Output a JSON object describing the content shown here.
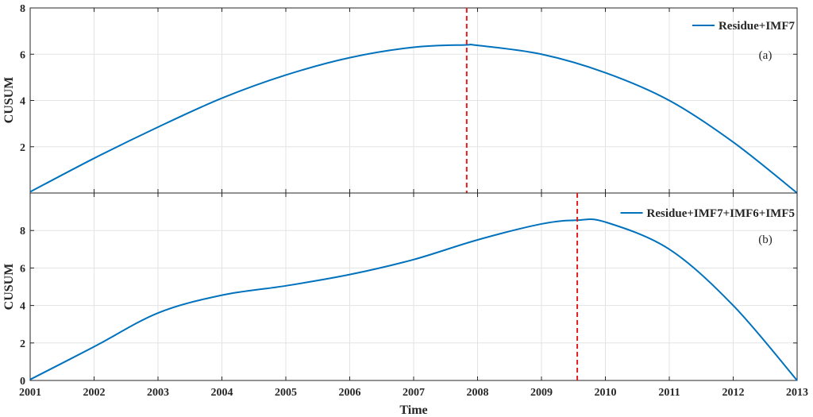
{
  "chart_data": [
    {
      "type": "line",
      "panel_label": "(a)",
      "ylabel": "CUSUM",
      "xlabel": "",
      "xlim": [
        2001,
        2013
      ],
      "ylim": [
        0,
        8
      ],
      "yticks": [
        2,
        4,
        6,
        8
      ],
      "xticks": [],
      "grid": true,
      "legend_placement": "top-right",
      "series": [
        {
          "name": "Residue+IMF7",
          "color": "#0072BD",
          "x": [
            2001,
            2002,
            2003,
            2004,
            2005,
            2006,
            2007,
            2007.8,
            2008,
            2009,
            2010,
            2011,
            2012,
            2013
          ],
          "y": [
            0.05,
            1.5,
            2.85,
            4.1,
            5.1,
            5.85,
            6.3,
            6.4,
            6.38,
            6.0,
            5.2,
            4.0,
            2.2,
            0.0
          ]
        }
      ],
      "change_point": {
        "x": 2007.83,
        "color": "#e41a1c"
      }
    },
    {
      "type": "line",
      "panel_label": "(b)",
      "ylabel": "CUSUM",
      "xlabel": "Time",
      "xlim": [
        2001,
        2013
      ],
      "ylim": [
        0,
        10
      ],
      "yticks": [
        0,
        2,
        4,
        6,
        8
      ],
      "xticks": [
        2001,
        2002,
        2003,
        2004,
        2005,
        2006,
        2007,
        2008,
        2009,
        2010,
        2011,
        2012,
        2013
      ],
      "grid": true,
      "legend_placement": "top-right",
      "series": [
        {
          "name": "Residue+IMF7+IMF6+IMF5",
          "color": "#0072BD",
          "x": [
            2001,
            2002,
            2003,
            2004,
            2005,
            2006,
            2007,
            2008,
            2009,
            2009.56,
            2010,
            2011,
            2012,
            2013
          ],
          "y": [
            0.05,
            1.8,
            3.6,
            4.55,
            5.05,
            5.65,
            6.45,
            7.5,
            8.35,
            8.55,
            8.45,
            7.0,
            4.0,
            0.0
          ]
        }
      ],
      "change_point": {
        "x": 2009.56,
        "color": "#e41a1c"
      }
    }
  ]
}
